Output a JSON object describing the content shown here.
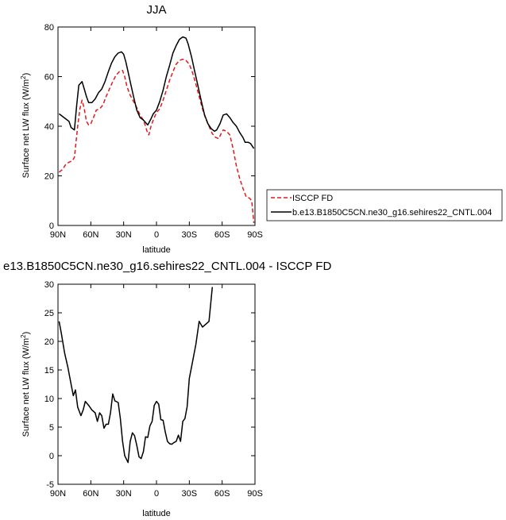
{
  "chart_data": [
    {
      "type": "line",
      "title": "JJA",
      "xlabel": "latitude",
      "ylabel": "Surface net LW flux (W/m",
      "ylabel_sup": "2",
      "ylabel_close": ")",
      "xlim": [
        90,
        -90
      ],
      "ylim": [
        0,
        80
      ],
      "xticks": [
        {
          "value": 90,
          "label": "90N"
        },
        {
          "value": 60,
          "label": "60N"
        },
        {
          "value": 30,
          "label": "30N"
        },
        {
          "value": 0,
          "label": "0"
        },
        {
          "value": -30,
          "label": "30S"
        },
        {
          "value": -60,
          "label": "60S"
        },
        {
          "value": -90,
          "label": "90S"
        }
      ],
      "yticks": [
        0,
        20,
        40,
        60,
        80
      ],
      "legend": {
        "placement": "right"
      },
      "series": [
        {
          "name": "ISCCP FD",
          "color": "#e31a1c",
          "dash": "dashed",
          "points": [
            [
              89,
              21.5
            ],
            [
              86,
              22.5
            ],
            [
              83,
              24.5
            ],
            [
              80,
              25.5
            ],
            [
              77,
              26
            ],
            [
              75,
              27.5
            ],
            [
              72,
              40
            ],
            [
              70,
              47
            ],
            [
              68,
              50.5
            ],
            [
              66,
              47
            ],
            [
              64,
              42
            ],
            [
              62,
              40.5
            ],
            [
              60,
              41
            ],
            [
              58,
              43
            ],
            [
              55,
              46.5
            ],
            [
              52,
              47
            ],
            [
              49,
              48.5
            ],
            [
              46,
              52
            ],
            [
              43,
              55
            ],
            [
              40,
              58
            ],
            [
              37,
              60.5
            ],
            [
              34,
              62
            ],
            [
              31,
              62.5
            ],
            [
              29,
              60
            ],
            [
              27,
              56
            ],
            [
              24,
              52.5
            ],
            [
              21,
              50
            ],
            [
              18,
              47.5
            ],
            [
              15,
              44.5
            ],
            [
              12,
              42.5
            ],
            [
              10,
              40
            ],
            [
              8,
              37
            ],
            [
              7,
              36.5
            ],
            [
              5,
              40
            ],
            [
              3,
              42.5
            ],
            [
              0,
              45.5
            ],
            [
              -3,
              47
            ],
            [
              -6,
              50.5
            ],
            [
              -9,
              54.5
            ],
            [
              -12,
              58.5
            ],
            [
              -15,
              62
            ],
            [
              -18,
              65
            ],
            [
              -21,
              66.5
            ],
            [
              -24,
              67
            ],
            [
              -27,
              66.5
            ],
            [
              -30,
              65
            ],
            [
              -33,
              61.5
            ],
            [
              -36,
              57
            ],
            [
              -39,
              52
            ],
            [
              -42,
              47
            ],
            [
              -45,
              43
            ],
            [
              -48,
              40
            ],
            [
              -51,
              37
            ],
            [
              -54,
              35.5
            ],
            [
              -57,
              35
            ],
            [
              -59,
              37
            ],
            [
              -61,
              38.5
            ],
            [
              -64,
              38
            ],
            [
              -67,
              36.5
            ],
            [
              -70,
              31
            ],
            [
              -73,
              24
            ],
            [
              -76,
              19
            ],
            [
              -79,
              15
            ],
            [
              -82,
              11.5
            ],
            [
              -85,
              11
            ],
            [
              -87,
              10
            ],
            [
              -89,
              1
            ]
          ]
        },
        {
          "name": "b.e13.B1850C5CN.ne30_g16.sehires22_CNTL.004",
          "color": "#000000",
          "dash": "solid",
          "points": [
            [
              89,
              45
            ],
            [
              86,
              44
            ],
            [
              83,
              43
            ],
            [
              80,
              42
            ],
            [
              78,
              39.5
            ],
            [
              75,
              38.5
            ],
            [
              73,
              48
            ],
            [
              71,
              56.5
            ],
            [
              68,
              58
            ],
            [
              66,
              55
            ],
            [
              64,
              52
            ],
            [
              62,
              49.5
            ],
            [
              59,
              49.5
            ],
            [
              56,
              51
            ],
            [
              53,
              53.5
            ],
            [
              50,
              55
            ],
            [
              47,
              58
            ],
            [
              44,
              62
            ],
            [
              41,
              65.5
            ],
            [
              38,
              68
            ],
            [
              35,
              69.5
            ],
            [
              32,
              70
            ],
            [
              30,
              69
            ],
            [
              28,
              66
            ],
            [
              26,
              62
            ],
            [
              24,
              58
            ],
            [
              21,
              52
            ],
            [
              18,
              46.5
            ],
            [
              15,
              43.5
            ],
            [
              12,
              42.5
            ],
            [
              10,
              41.5
            ],
            [
              8,
              40.5
            ],
            [
              5,
              43
            ],
            [
              3,
              45
            ],
            [
              0,
              46.5
            ],
            [
              -3,
              50
            ],
            [
              -6,
              54.5
            ],
            [
              -9,
              60
            ],
            [
              -12,
              64.5
            ],
            [
              -15,
              69.5
            ],
            [
              -18,
              72.5
            ],
            [
              -21,
              75
            ],
            [
              -24,
              76
            ],
            [
              -27,
              75.5
            ],
            [
              -29,
              73
            ],
            [
              -32,
              68
            ],
            [
              -35,
              62
            ],
            [
              -38,
              56
            ],
            [
              -41,
              50
            ],
            [
              -44,
              44.5
            ],
            [
              -47,
              41
            ],
            [
              -50,
              39
            ],
            [
              -53,
              38
            ],
            [
              -55,
              38.5
            ],
            [
              -58,
              41
            ],
            [
              -61,
              44.5
            ],
            [
              -64,
              45
            ],
            [
              -67,
              43.5
            ],
            [
              -70,
              41.5
            ],
            [
              -73,
              40
            ],
            [
              -76,
              37.5
            ],
            [
              -79,
              35.5
            ],
            [
              -81,
              33.5
            ],
            [
              -84,
              33.5
            ],
            [
              -86,
              33
            ],
            [
              -89,
              31
            ]
          ]
        }
      ]
    },
    {
      "type": "line",
      "title": "e13.B1850C5CN.ne30_g16.sehires22_CNTL.004 - ISCCP FD",
      "xlabel": "latitude",
      "ylabel": "Surface net LW flux (W/m",
      "ylabel_sup": "2",
      "ylabel_close": ")",
      "xlim": [
        90,
        -90
      ],
      "ylim": [
        -5,
        30
      ],
      "xticks": [
        {
          "value": 90,
          "label": "90N"
        },
        {
          "value": 60,
          "label": "60N"
        },
        {
          "value": 30,
          "label": "30N"
        },
        {
          "value": 0,
          "label": "0"
        },
        {
          "value": -30,
          "label": "30S"
        },
        {
          "value": -60,
          "label": "60S"
        },
        {
          "value": -90,
          "label": "90S"
        }
      ],
      "yticks": [
        -5,
        0,
        5,
        10,
        15,
        20,
        25,
        30
      ],
      "series": [
        {
          "color": "#000000",
          "dash": "solid",
          "points": [
            [
              89,
              23.5
            ],
            [
              87,
              21.5
            ],
            [
              84,
              18
            ],
            [
              81,
              15.5
            ],
            [
              78,
              12.5
            ],
            [
              76,
              10.5
            ],
            [
              74,
              11.5
            ],
            [
              72,
              8.5
            ],
            [
              69,
              7
            ],
            [
              67,
              8
            ],
            [
              65,
              9.5
            ],
            [
              62,
              8.8
            ],
            [
              59,
              8
            ],
            [
              56,
              7.5
            ],
            [
              54,
              6
            ],
            [
              52,
              7.5
            ],
            [
              50,
              7
            ],
            [
              48,
              4.8
            ],
            [
              46,
              5.5
            ],
            [
              44,
              5.5
            ],
            [
              42,
              7.5
            ],
            [
              40,
              10.8
            ],
            [
              38,
              9.6
            ],
            [
              35,
              9.3
            ],
            [
              33,
              6.5
            ],
            [
              31,
              2.5
            ],
            [
              29,
              0
            ],
            [
              26,
              -1.2
            ],
            [
              24,
              2.5
            ],
            [
              22,
              4
            ],
            [
              20,
              3.5
            ],
            [
              18,
              1.8
            ],
            [
              16,
              -0.2
            ],
            [
              14,
              -0.5
            ],
            [
              12,
              0.7
            ],
            [
              10,
              3.3
            ],
            [
              8,
              3.2
            ],
            [
              6,
              5.2
            ],
            [
              4,
              6
            ],
            [
              2,
              8.8
            ],
            [
              0,
              9.5
            ],
            [
              -2,
              9
            ],
            [
              -4,
              6.3
            ],
            [
              -6,
              6.2
            ],
            [
              -8,
              4.2
            ],
            [
              -10,
              2.5
            ],
            [
              -12,
              2.1
            ],
            [
              -14,
              2
            ],
            [
              -16,
              2.3
            ],
            [
              -18,
              2.5
            ],
            [
              -20,
              3.6
            ],
            [
              -22,
              2.5
            ],
            [
              -24,
              6
            ],
            [
              -26,
              6.5
            ],
            [
              -28,
              8.6
            ],
            [
              -30,
              13.5
            ],
            [
              -33,
              16.5
            ],
            [
              -36,
              19.5
            ],
            [
              -39,
              23.5
            ],
            [
              -42,
              22.5
            ],
            [
              -45,
              23
            ],
            [
              -48,
              23.5
            ],
            [
              -51,
              29.5
            ]
          ]
        }
      ]
    }
  ]
}
